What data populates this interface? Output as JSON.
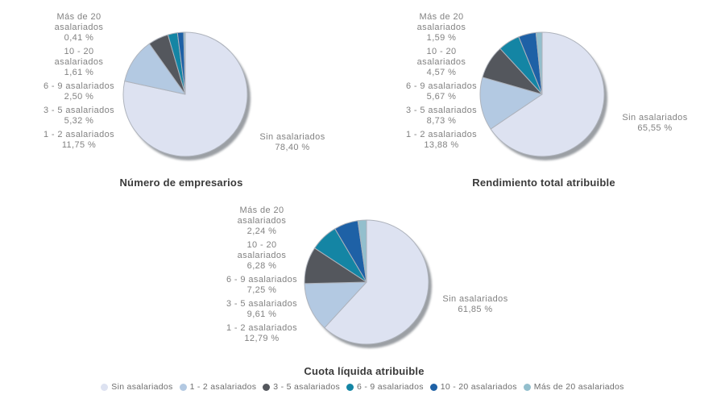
{
  "legend": {
    "position": "bottom",
    "items": [
      {
        "label": "Sin asalariados",
        "color": "#dde2f1"
      },
      {
        "label": "1 - 2 asalariados",
        "color": "#b3c9e2"
      },
      {
        "label": "3 - 5 asalariados",
        "color": "#54575d"
      },
      {
        "label": "6 - 9 asalariados",
        "color": "#1485a4"
      },
      {
        "label": "10 - 20 asalariados",
        "color": "#1e61a6"
      },
      {
        "label": "Más de 20 asalariados",
        "color": "#93bfcd"
      }
    ]
  },
  "chart_data": [
    {
      "type": "pie",
      "title": "Número de empresarios",
      "categories": [
        "Sin asalariados",
        "1 - 2 asalariados",
        "3 - 5 asalariados",
        "6 - 9 asalariados",
        "10 - 20 asalariados",
        "Más de 20 asalariados"
      ],
      "display_names": [
        "Sin asalariados",
        "1 - 2 asalariados",
        "3 - 5 asalariados",
        "6 - 9 asalariados",
        "10 - 20\nasalariados",
        "Más de 20\nasalariados"
      ],
      "values": [
        78.4,
        11.75,
        5.32,
        2.5,
        1.61,
        0.41
      ],
      "value_labels": [
        "78,40 %",
        "11,75 %",
        "5,32 %",
        "2,50 %",
        "1,61 %",
        "0,41 %"
      ],
      "colors": [
        "#dde2f1",
        "#b3c9e2",
        "#54575d",
        "#1485a4",
        "#1e61a6",
        "#93bfcd"
      ],
      "start_angle_deg": -90,
      "direction": "clockwise"
    },
    {
      "type": "pie",
      "title": "Rendimiento total atribuible",
      "categories": [
        "Sin asalariados",
        "1 - 2 asalariados",
        "3 - 5 asalariados",
        "6 - 9 asalariados",
        "10 - 20 asalariados",
        "Más de 20 asalariados"
      ],
      "display_names": [
        "Sin asalariados",
        "1 - 2 asalariados",
        "3 - 5 asalariados",
        "6 - 9 asalariados",
        "10 - 20\nasalariados",
        "Más de 20\nasalariados"
      ],
      "values": [
        65.55,
        13.88,
        8.73,
        5.67,
        4.57,
        1.59
      ],
      "value_labels": [
        "65,55 %",
        "13,88 %",
        "8,73 %",
        "5,67 %",
        "4,57 %",
        "1,59 %"
      ],
      "colors": [
        "#dde2f1",
        "#b3c9e2",
        "#54575d",
        "#1485a4",
        "#1e61a6",
        "#93bfcd"
      ],
      "start_angle_deg": -90,
      "direction": "clockwise"
    },
    {
      "type": "pie",
      "title": "Cuota líquida atribuible",
      "categories": [
        "Sin asalariados",
        "1 - 2 asalariados",
        "3 - 5 asalariados",
        "6 - 9 asalariados",
        "10 - 20 asalariados",
        "Más de 20 asalariados"
      ],
      "display_names": [
        "Sin asalariados",
        "1 - 2 asalariados",
        "3 - 5 asalariados",
        "6 - 9 asalariados",
        "10 - 20\nasalariados",
        "Más de 20\nasalariados"
      ],
      "values": [
        61.85,
        12.79,
        9.61,
        7.25,
        6.28,
        2.24
      ],
      "value_labels": [
        "61,85 %",
        "12,79 %",
        "9,61 %",
        "7,25 %",
        "6,28 %",
        "2,24 %"
      ],
      "colors": [
        "#dde2f1",
        "#b3c9e2",
        "#54575d",
        "#1485a4",
        "#1e61a6",
        "#93bfcd"
      ],
      "start_angle_deg": -90,
      "direction": "clockwise"
    }
  ],
  "style": {
    "slice_stroke": "#aeb3bc",
    "shadow_color": "#9b9fa4",
    "label_color": "#828282",
    "title_color": "#3a3a3a",
    "legend_text_color": "#6e6e6e",
    "background": "#ffffff"
  }
}
